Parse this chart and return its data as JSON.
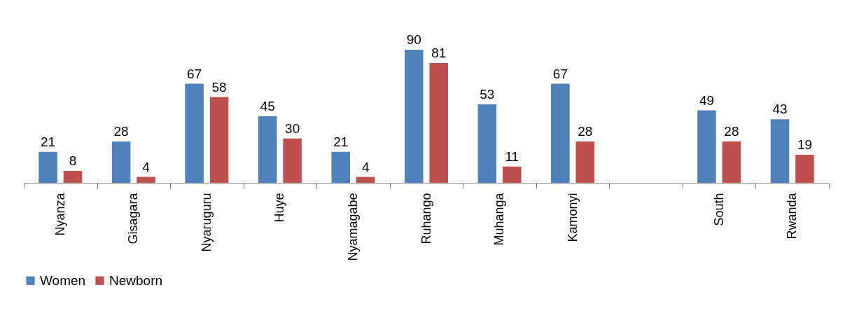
{
  "chart_data": {
    "type": "bar",
    "categories": [
      "Nyanza",
      "Gisagara",
      "Nyaruguru",
      "Huye",
      "Nyamagabe",
      "Ruhango",
      "Muhanga",
      "Kamonyi",
      null,
      "South",
      "Rwanda"
    ],
    "series": [
      {
        "name": "Women",
        "color": "#4f81bd",
        "values": [
          21,
          28,
          67,
          45,
          21,
          90,
          53,
          67,
          null,
          49,
          43
        ]
      },
      {
        "name": "Newborn",
        "color": "#c0504d",
        "values": [
          8,
          4,
          58,
          30,
          4,
          81,
          11,
          28,
          null,
          28,
          19
        ]
      }
    ],
    "relative": false,
    "data_labels": true,
    "legend": "bottom",
    "grid": false
  }
}
